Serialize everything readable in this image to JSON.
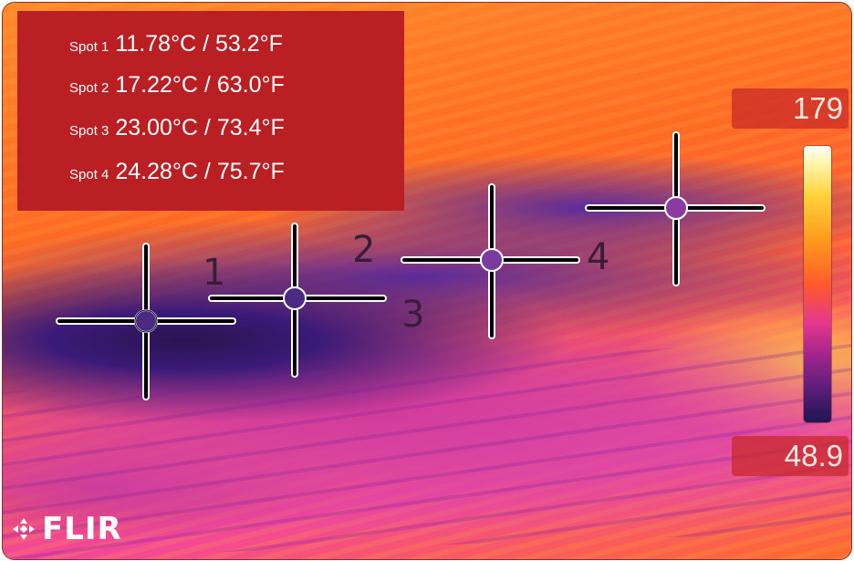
{
  "spots": [
    {
      "label": "Spot 1",
      "value": "11.78°C / 53.2°F"
    },
    {
      "label": "Spot 2",
      "value": "17.22°C / 63.0°F"
    },
    {
      "label": "Spot 3",
      "value": "23.00°C / 73.4°F"
    },
    {
      "label": "Spot 4",
      "value": "24.28°C / 75.7°F"
    }
  ],
  "markers": [
    "1",
    "2",
    "3",
    "4"
  ],
  "scale": {
    "max": "179",
    "min": "48.9"
  },
  "brand": {
    "name": "FLIR",
    "icon": "flir-logo-icon"
  },
  "colors": {
    "panel": "#b91f23"
  }
}
